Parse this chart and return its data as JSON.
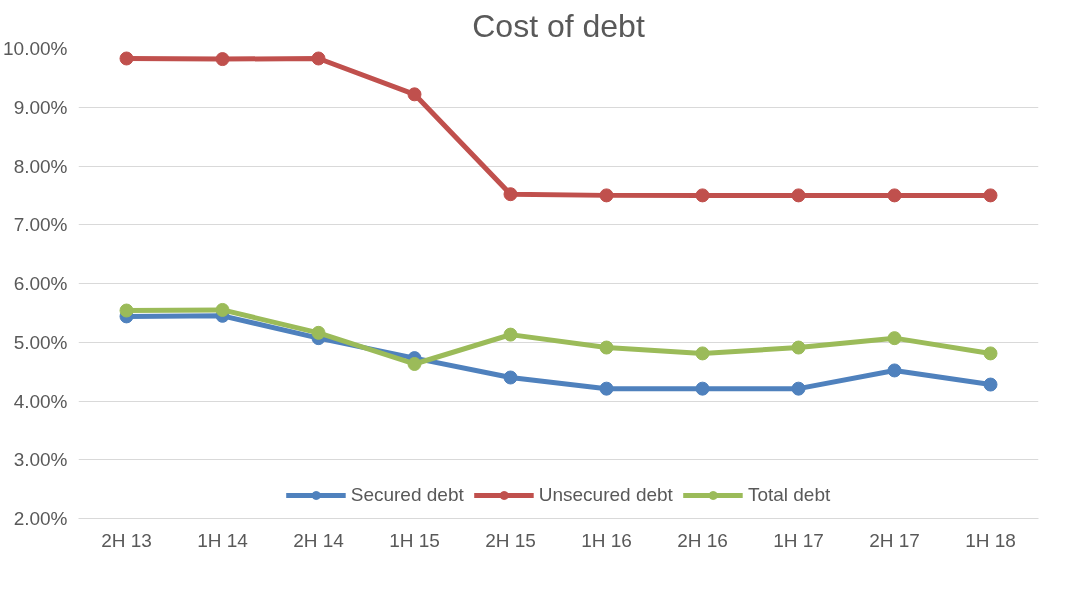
{
  "chart_data": {
    "type": "line",
    "title": "Cost of debt",
    "categories": [
      "2H 13",
      "1H 14",
      "2H 14",
      "1H 15",
      "2H 15",
      "1H 16",
      "2H 16",
      "1H 17",
      "2H 17",
      "1H 18"
    ],
    "series": [
      {
        "name": "Secured debt",
        "color": "#4f81bd",
        "values": [
          5.44,
          5.45,
          5.07,
          4.73,
          4.4,
          4.21,
          4.21,
          4.21,
          4.52,
          4.28
        ]
      },
      {
        "name": "Unsecured debt",
        "color": "#c0504d",
        "values": [
          9.83,
          9.82,
          9.83,
          9.22,
          7.52,
          7.5,
          7.5,
          7.5,
          7.5,
          7.5
        ]
      },
      {
        "name": "Total debt",
        "color": "#9bbb59",
        "values": [
          5.54,
          5.55,
          5.16,
          4.63,
          5.13,
          4.91,
          4.81,
          4.91,
          5.07,
          4.81
        ]
      }
    ],
    "ylim": [
      2,
      10
    ],
    "yticks": [
      {
        "value": 2,
        "label": "2.00%"
      },
      {
        "value": 3,
        "label": "3.00%"
      },
      {
        "value": 4,
        "label": "4.00%"
      },
      {
        "value": 5,
        "label": "5.00%"
      },
      {
        "value": 6,
        "label": "6.00%"
      },
      {
        "value": 7,
        "label": "7.00%"
      },
      {
        "value": 8,
        "label": "8.00%"
      },
      {
        "value": 9,
        "label": "9.00%"
      },
      {
        "value": 10,
        "label": "10.00%"
      }
    ],
    "grid": "y",
    "legend": "bottom",
    "marker": "circle",
    "line_style": "solid"
  }
}
